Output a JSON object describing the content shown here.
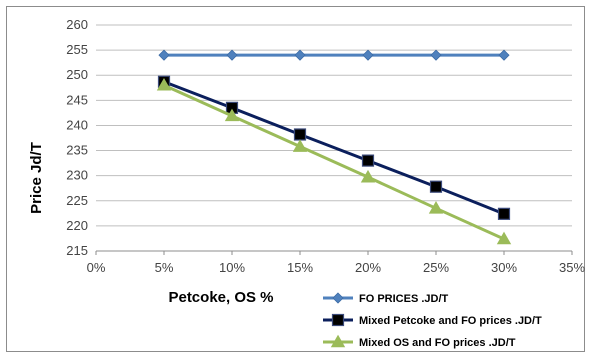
{
  "chart_data": {
    "type": "line",
    "xlabel": "Petcoke, OS  %",
    "ylabel": "Price  Jd/T",
    "x_ticks": [
      "0%",
      "5%",
      "10%",
      "15%",
      "20%",
      "25%",
      "30%",
      "35%"
    ],
    "xlim": [
      0,
      35
    ],
    "ylim": [
      215,
      260
    ],
    "y_ticks": [
      215,
      220,
      225,
      230,
      235,
      240,
      245,
      250,
      255,
      260
    ],
    "grid": true,
    "legend_position": "bottom-right",
    "x": [
      5,
      10,
      15,
      20,
      25,
      30
    ],
    "series": [
      {
        "name": "FO PRICES .JD/T",
        "values": [
          254,
          254,
          254,
          254,
          254,
          254
        ],
        "color": "#4f81bd",
        "marker": "diamond"
      },
      {
        "name": "Mixed  Petcoke and FO prices .JD/T",
        "values": [
          248.7,
          243.5,
          238.2,
          233.0,
          227.8,
          222.4
        ],
        "color": "#0b1f5c",
        "marker": "square"
      },
      {
        "name": "Mixed  OS and FO prices .JD/T",
        "values": [
          248.0,
          241.9,
          235.8,
          229.7,
          223.5,
          217.4
        ],
        "color": "#9bbb59",
        "marker": "triangle"
      }
    ]
  }
}
